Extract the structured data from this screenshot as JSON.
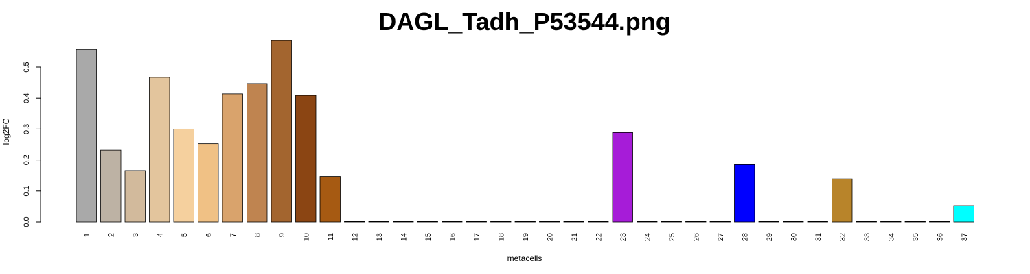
{
  "chart_data": {
    "type": "bar",
    "title": "DAGL_Tadh_P53544.png",
    "xlabel": "metacells",
    "ylabel": "log2FC",
    "ylim": [
      0,
      0.6
    ],
    "yticks": [
      "0.0",
      "0.1",
      "0.2",
      "0.3",
      "0.4",
      "0.5"
    ],
    "grid": false,
    "legend": "none",
    "categories": [
      "1",
      "2",
      "3",
      "4",
      "5",
      "6",
      "7",
      "8",
      "9",
      "10",
      "11",
      "12",
      "13",
      "14",
      "15",
      "16",
      "17",
      "18",
      "19",
      "20",
      "21",
      "22",
      "23",
      "24",
      "25",
      "26",
      "27",
      "28",
      "29",
      "30",
      "31",
      "32",
      "33",
      "34",
      "35",
      "36",
      "37"
    ],
    "values": [
      0.557,
      0.232,
      0.166,
      0.467,
      0.3,
      0.253,
      0.414,
      0.447,
      0.586,
      0.409,
      0.147,
      0,
      0,
      0,
      0,
      0,
      0,
      0,
      0,
      0,
      0,
      0,
      0.289,
      0,
      0,
      0,
      0,
      0.185,
      0,
      0,
      0,
      0.139,
      0,
      0,
      0,
      0,
      0.053
    ],
    "colors": [
      "#A9A9A9",
      "#BDB2A4",
      "#D2BA9C",
      "#E3C59D",
      "#F5D09E",
      "#F0C185",
      "#D9A36C",
      "#BF8450",
      "#A3652F",
      "#8B4513",
      "#A65A12",
      "#A65A12",
      "#A65A12",
      "#A65A12",
      "#A65A12",
      "#A65A12",
      "#A65A12",
      "#A65A12",
      "#A65A12",
      "#A65A12",
      "#A65A12",
      "#A65A12",
      "#A61CD8",
      "#A65A12",
      "#A65A12",
      "#A65A12",
      "#A65A12",
      "#0000FF",
      "#A65A12",
      "#A65A12",
      "#A65A12",
      "#B8842A",
      "#A65A12",
      "#A65A12",
      "#A65A12",
      "#A65A12",
      "#00FFFF"
    ]
  }
}
